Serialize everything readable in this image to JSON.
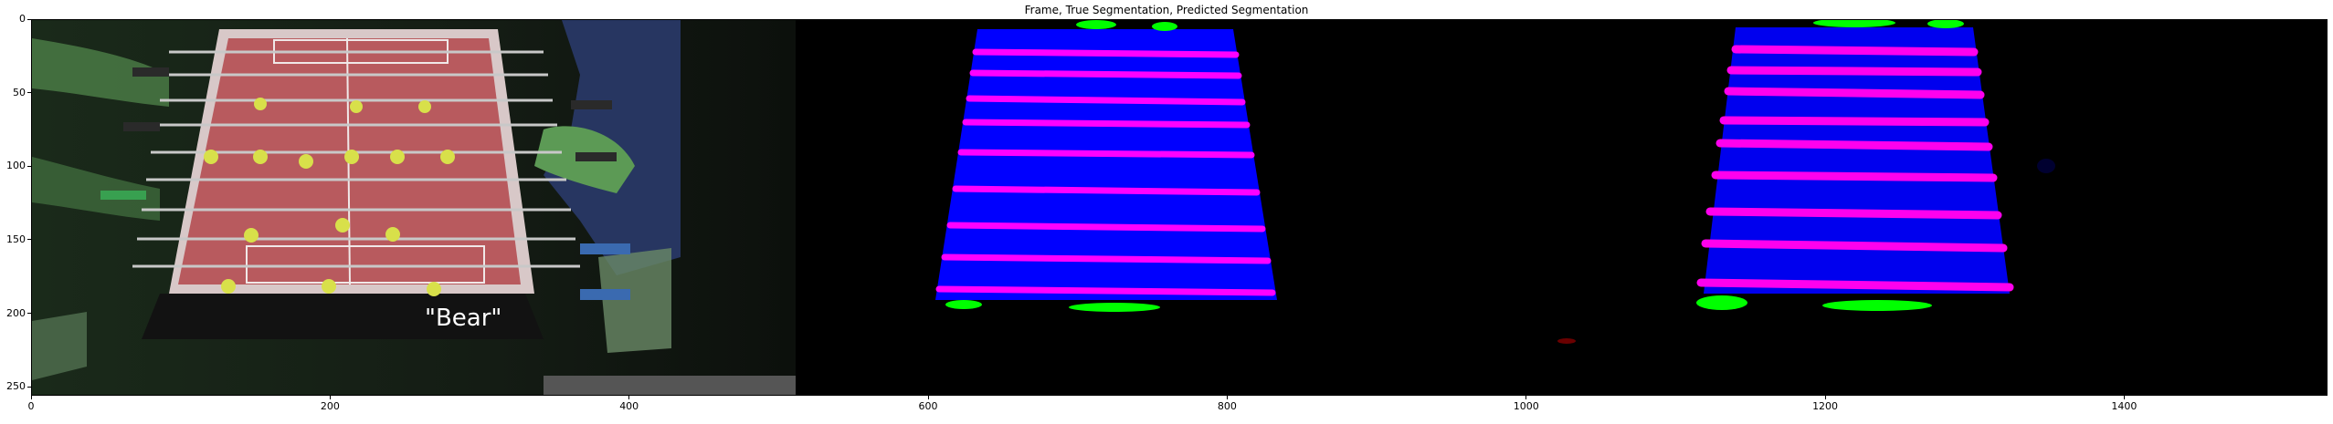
{
  "title": "Frame, True Segmentation, Predicted Segmentation",
  "axes": {
    "x_ticks": [
      0,
      200,
      400,
      600,
      800,
      1000,
      1200,
      1400
    ],
    "y_ticks": [
      0,
      50,
      100,
      150,
      200,
      250
    ],
    "x_range": [
      0,
      1536
    ],
    "y_range": [
      256,
      0
    ]
  },
  "panels": [
    {
      "name": "frame",
      "description": "foosball table video frame"
    },
    {
      "name": "true-segmentation",
      "description": "ground-truth mask"
    },
    {
      "name": "predicted-segmentation",
      "description": "model predicted mask"
    }
  ],
  "frame_text": "\"Bear\"",
  "colors": {
    "table_mask": "#0000ff",
    "rod_mask": "#ff00ff",
    "handle_mask": "#00ff00",
    "background": "#000000",
    "table_surface": "#b85a5e",
    "player_yellow": "#d8e04a"
  }
}
